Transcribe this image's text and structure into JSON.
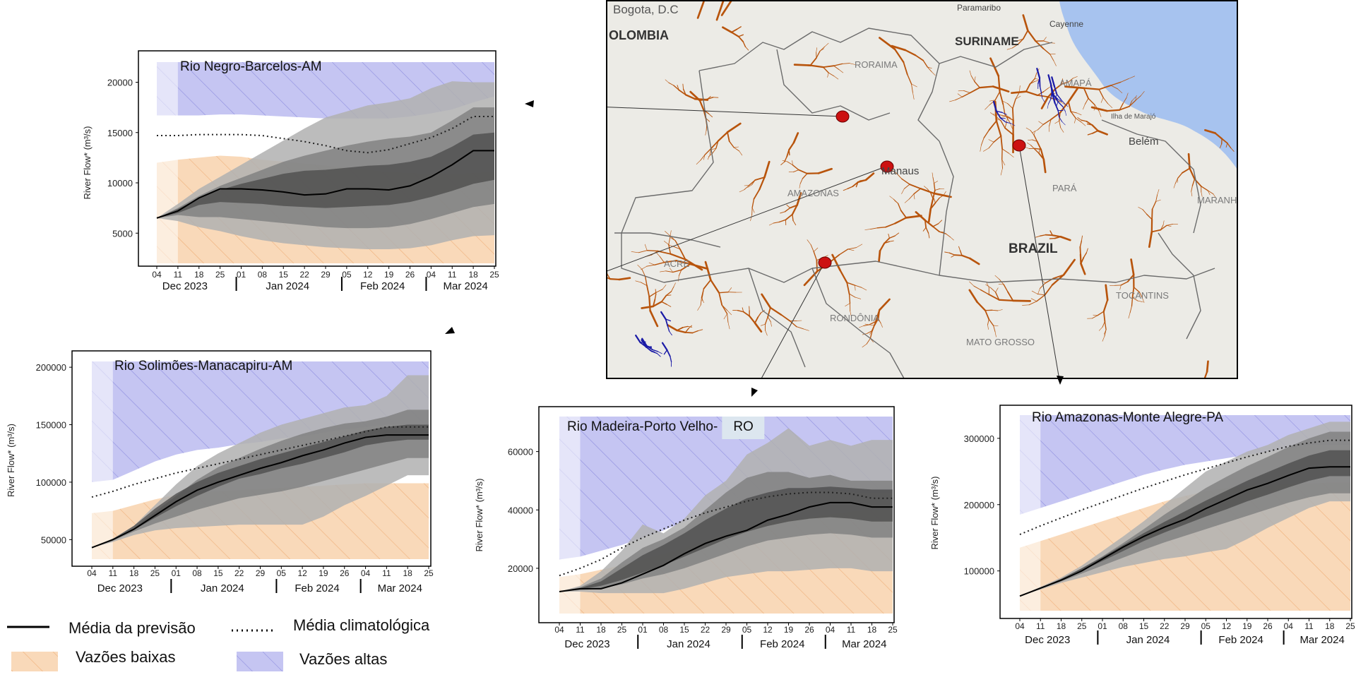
{
  "colors": {
    "low_fill": "#f9d9b9",
    "high_fill": "#c5c5f2",
    "high_stripe": "#8f8fe0",
    "low_stripe": "#efb07a",
    "band_light": "#b0b0b0",
    "band_mid": "#7e7e7e",
    "band_dark": "#4a4a4a",
    "mean_line": "#000000",
    "clim_line": "#222222",
    "map_land": "#ecebe6",
    "map_ocean": "#a7c3ef",
    "river_brown": "#b8540c",
    "river_blue": "#1a1aa6",
    "station_red": "#cc1111"
  },
  "x_axis": {
    "tick_labels": [
      "04",
      "11",
      "18",
      "25",
      "01",
      "08",
      "15",
      "22",
      "29",
      "05",
      "12",
      "19",
      "26",
      "04",
      "11",
      "18",
      "25"
    ],
    "month_labels": [
      "Dec 2023",
      "Jan 2024",
      "Feb 2024",
      "Mar 2024"
    ]
  },
  "legend": {
    "mean_forecast": "Média da previsão",
    "clim_mean": "Média climatológica",
    "low_flows": "Vazões baixas",
    "high_flows": "Vazões altas"
  },
  "map": {
    "labels": {
      "bogota": "Bogota, D.C",
      "colombia": "OLOMBIA",
      "paramaribo": "Paramaribo",
      "cayenne": "Cayenne",
      "suriname": "SURINAME",
      "roraima": "RORAIMA",
      "amapa": "AMAPÁ",
      "marajo": "Ilha de Marajó",
      "belem": "Belém",
      "manaus": "Manaus",
      "amazonas": "AMAZONAS",
      "para": "PARÁ",
      "maranhao": "MARANHÃ",
      "acre": "ACRE",
      "brazil": "BRAZIL",
      "tocantins": "TOCANTINS",
      "rondonia": "RONDÔNIA",
      "mato_grosso": "MATO GROSSO"
    }
  },
  "chart_data": [
    {
      "type": "area",
      "title": "Rio Negro-Barcelos-AM",
      "xlabel": "",
      "ylabel": "River Flow* (m³/s)",
      "ylim": [
        2000,
        22000
      ],
      "yticks": [
        5000,
        10000,
        15000,
        20000
      ],
      "x": [
        0,
        1,
        2,
        3,
        4,
        5,
        6,
        7,
        8,
        9,
        10,
        11,
        12,
        13,
        14,
        15,
        16
      ],
      "history_start": 0,
      "forecast_start": 1,
      "low_flow_upper": [
        12000,
        12300,
        12500,
        12700,
        12600,
        12300,
        12100,
        11900,
        11700,
        11500,
        11300,
        11100,
        11000,
        10900,
        10900,
        11000,
        11100
      ],
      "high_flow_lower": [
        16700,
        16700,
        16700,
        16800,
        16800,
        16700,
        16600,
        16500,
        16400,
        16400,
        16400,
        16400,
        16600,
        16900,
        17300,
        18000,
        18600
      ],
      "band_outer_lower": [
        6500,
        6200,
        5600,
        5200,
        4700,
        4300,
        4000,
        3800,
        3600,
        3500,
        3400,
        3400,
        3500,
        3800,
        4300,
        4700,
        4800
      ],
      "band_outer_upper": [
        6500,
        7900,
        9400,
        10600,
        11800,
        13000,
        14200,
        15400,
        16500,
        17100,
        17700,
        18000,
        18400,
        19400,
        20100,
        20000,
        20000
      ],
      "band_mid_lower": [
        6500,
        6800,
        6600,
        6600,
        6400,
        6200,
        6000,
        5800,
        5600,
        5500,
        5500,
        5600,
        5900,
        6400,
        7000,
        7600,
        7900
      ],
      "band_mid_upper": [
        6500,
        7500,
        8700,
        9700,
        10500,
        11300,
        12100,
        12700,
        13200,
        13700,
        14100,
        14400,
        14600,
        15000,
        16200,
        17500,
        17500
      ],
      "band_inner_lower": [
        6500,
        7000,
        7800,
        8100,
        8000,
        7900,
        7700,
        7600,
        7500,
        7600,
        7700,
        7800,
        8100,
        8600,
        9200,
        9900,
        10300
      ],
      "band_inner_upper": [
        6500,
        7400,
        8500,
        9300,
        9900,
        10400,
        10900,
        11200,
        11300,
        11500,
        11700,
        11800,
        12100,
        12600,
        13600,
        14800,
        15000
      ],
      "mean_forecast": [
        6500,
        7200,
        8500,
        9400,
        9400,
        9300,
        9100,
        8800,
        8900,
        9400,
        9400,
        9300,
        9700,
        10600,
        11800,
        13200,
        13200
      ],
      "clim_mean": [
        14700,
        14700,
        14800,
        14800,
        14800,
        14700,
        14400,
        14100,
        13700,
        13200,
        13000,
        13300,
        13900,
        14500,
        15400,
        16600,
        16600
      ]
    },
    {
      "type": "area",
      "title": "Rio Solimões-Manacapiru-AM",
      "xlabel": "",
      "ylabel": "River Flow* (m³/s)",
      "ylim": [
        33000,
        205000
      ],
      "yticks": [
        50000,
        100000,
        150000,
        200000
      ],
      "x": [
        0,
        1,
        2,
        3,
        4,
        5,
        6,
        7,
        8,
        9,
        10,
        11,
        12,
        13,
        14,
        15,
        16
      ],
      "history_start": 0,
      "forecast_start": 1,
      "low_flow_upper": [
        73000,
        75000,
        80000,
        85000,
        89000,
        91000,
        92000,
        93000,
        94000,
        95000,
        96000,
        97000,
        98000,
        99000,
        99000,
        99000,
        99000
      ],
      "high_flow_lower": [
        100000,
        102000,
        110000,
        118000,
        124000,
        128000,
        130000,
        133000,
        135000,
        138000,
        140000,
        143000,
        146000,
        148000,
        150000,
        150000,
        150000
      ],
      "band_outer_lower": [
        43000,
        48000,
        54000,
        58000,
        60000,
        61000,
        62000,
        63000,
        63000,
        63000,
        63000,
        70000,
        80000,
        88000,
        97000,
        106000,
        106000
      ],
      "band_outer_upper": [
        43000,
        51000,
        62000,
        80000,
        98000,
        114000,
        125000,
        134000,
        143000,
        150000,
        155000,
        160000,
        165000,
        167000,
        175000,
        193000,
        193000
      ],
      "band_mid_lower": [
        43000,
        49000,
        57000,
        64000,
        70000,
        76000,
        81000,
        86000,
        89000,
        92000,
        96000,
        101000,
        106000,
        111000,
        116000,
        121000,
        121000
      ],
      "band_mid_upper": [
        43000,
        50000,
        60000,
        74000,
        88000,
        102000,
        113000,
        121000,
        129000,
        136000,
        142000,
        147000,
        151000,
        153000,
        157000,
        163000,
        163000
      ],
      "band_inner_lower": [
        43000,
        49500,
        58500,
        69000,
        79000,
        88000,
        96000,
        103000,
        107000,
        112000,
        116000,
        121000,
        126000,
        132000,
        135000,
        137000,
        137000
      ],
      "band_inner_upper": [
        43000,
        50500,
        62000,
        77000,
        90000,
        100000,
        108000,
        114000,
        120000,
        125000,
        130000,
        135000,
        140000,
        145000,
        148000,
        150000,
        150000
      ],
      "mean_forecast": [
        43000,
        50000,
        59000,
        71000,
        83000,
        93000,
        100000,
        106000,
        112000,
        117000,
        123000,
        128000,
        134000,
        139000,
        141000,
        141000,
        141000
      ],
      "clim_mean": [
        87000,
        92000,
        98000,
        103000,
        108000,
        112000,
        116000,
        120000,
        124000,
        128000,
        132000,
        136000,
        140000,
        144000,
        148000,
        148000,
        148000
      ]
    },
    {
      "type": "area",
      "title": "Rio Madeira-Porto Velho-",
      "title_suffix": "RO",
      "xlabel": "",
      "ylabel": "River Flow* (m³/s)",
      "ylim": [
        4500,
        72000
      ],
      "yticks": [
        20000,
        40000,
        60000
      ],
      "x": [
        0,
        1,
        2,
        3,
        4,
        5,
        6,
        7,
        8,
        9,
        10,
        11,
        12,
        13,
        14,
        15,
        16
      ],
      "history_start": 0,
      "forecast_start": 1,
      "low_flow_upper": [
        17000,
        18000,
        19500,
        21000,
        23000,
        25000,
        27000,
        29500,
        32000,
        34000,
        35500,
        36500,
        37500,
        38500,
        39500,
        40000,
        40000
      ],
      "high_flow_lower": [
        23000,
        24000,
        26000,
        28000,
        30500,
        33000,
        36000,
        39000,
        41500,
        43500,
        45000,
        46000,
        46500,
        46500,
        46000,
        45500,
        45500
      ],
      "band_outer_lower": [
        12000,
        12000,
        11500,
        11500,
        11500,
        11500,
        13000,
        15000,
        17000,
        18000,
        19000,
        19000,
        19500,
        20000,
        20000,
        19000,
        19000
      ],
      "band_outer_upper": [
        12000,
        14000,
        19000,
        26000,
        35000,
        32000,
        37000,
        45000,
        50000,
        59000,
        63000,
        68000,
        62000,
        64000,
        62000,
        64000,
        64000
      ],
      "band_mid_lower": [
        12000,
        12500,
        13000,
        14500,
        16500,
        18000,
        20000,
        22500,
        25000,
        27500,
        29500,
        30500,
        31500,
        32000,
        31500,
        30500,
        30500
      ],
      "band_mid_upper": [
        12000,
        13500,
        16500,
        22000,
        27000,
        30000,
        34000,
        40000,
        46000,
        51000,
        53000,
        53000,
        51000,
        52000,
        50000,
        50000,
        50000
      ],
      "band_inner_lower": [
        12000,
        12800,
        14000,
        16000,
        18500,
        21000,
        24000,
        27000,
        30000,
        32500,
        34500,
        36000,
        37000,
        37500,
        37000,
        36000,
        36000
      ],
      "band_inner_upper": [
        12000,
        13200,
        15500,
        20000,
        24500,
        28000,
        32000,
        36500,
        40500,
        44000,
        46000,
        47500,
        47500,
        48000,
        47500,
        47000,
        47000
      ],
      "mean_forecast": [
        12000,
        13000,
        13000,
        15000,
        18000,
        21000,
        25000,
        28500,
        31000,
        33000,
        36500,
        38500,
        41000,
        42500,
        42500,
        41000,
        41000
      ],
      "clim_mean": [
        17500,
        20000,
        23000,
        27000,
        30500,
        33500,
        36500,
        39000,
        41000,
        43000,
        44500,
        45500,
        46000,
        46000,
        45500,
        44000,
        44000
      ]
    },
    {
      "type": "area",
      "title": "Rio Amazonas-Monte Alegre-PA",
      "xlabel": "",
      "ylabel": "River Flow* (m³/s)",
      "ylim": [
        40000,
        335000
      ],
      "yticks": [
        100000,
        200000,
        300000
      ],
      "x": [
        0,
        1,
        2,
        3,
        4,
        5,
        6,
        7,
        8,
        9,
        10,
        11,
        12,
        13,
        14,
        15,
        16
      ],
      "history_start": 0,
      "forecast_start": 1,
      "low_flow_upper": [
        135000,
        145000,
        155000,
        165000,
        175000,
        185000,
        195000,
        205000,
        213000,
        220000,
        225000,
        228000,
        230000,
        231000,
        232000,
        233000,
        233000
      ],
      "high_flow_lower": [
        185000,
        195000,
        205000,
        215000,
        225000,
        235000,
        245000,
        253000,
        260000,
        265000,
        270000,
        275000,
        280000,
        285000,
        290000,
        290000,
        290000
      ],
      "band_outer_lower": [
        62000,
        72000,
        82000,
        90000,
        98000,
        106000,
        112000,
        118000,
        122000,
        128000,
        133000,
        148000,
        165000,
        180000,
        195000,
        205000,
        205000
      ],
      "band_outer_upper": [
        62000,
        76000,
        90000,
        108000,
        130000,
        152000,
        175000,
        200000,
        225000,
        250000,
        265000,
        280000,
        290000,
        305000,
        315000,
        325000,
        325000
      ],
      "band_mid_lower": [
        62000,
        73000,
        84000,
        96000,
        108000,
        120000,
        132000,
        143000,
        153000,
        163000,
        173000,
        183000,
        193000,
        203000,
        211000,
        217000,
        217000
      ],
      "band_mid_upper": [
        62000,
        75000,
        88000,
        104000,
        122000,
        142000,
        163000,
        185000,
        205000,
        225000,
        242000,
        258000,
        272000,
        287000,
        300000,
        310000,
        310000
      ],
      "band_inner_lower": [
        62000,
        73500,
        86000,
        100000,
        115000,
        130000,
        145000,
        158000,
        170000,
        182000,
        193000,
        205000,
        215000,
        226000,
        236000,
        243000,
        243000
      ],
      "band_inner_upper": [
        62000,
        74500,
        88000,
        104000,
        121000,
        139000,
        157000,
        174000,
        190000,
        206000,
        221000,
        236000,
        249000,
        262000,
        274000,
        282000,
        282000
      ],
      "mean_forecast": [
        62000,
        74000,
        86000,
        100000,
        118000,
        136000,
        152000,
        166000,
        178000,
        194000,
        208000,
        222000,
        232000,
        244000,
        255000,
        257000,
        257000
      ],
      "clim_mean": [
        155000,
        168000,
        180000,
        192000,
        203000,
        214000,
        225000,
        235000,
        245000,
        254000,
        263000,
        272000,
        280000,
        288000,
        293000,
        297000,
        297000
      ]
    }
  ]
}
